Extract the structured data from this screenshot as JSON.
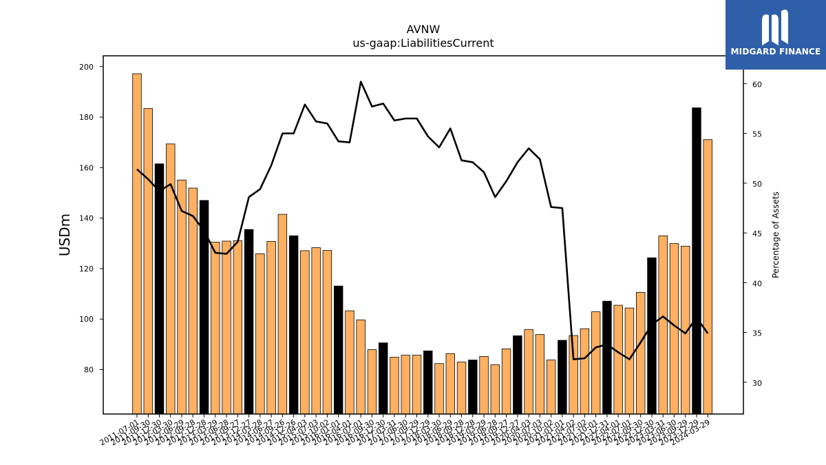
{
  "brand": {
    "name": "MIDGARD FINANCE",
    "bg_color": "#2f5fa8"
  },
  "chart_data": {
    "type": "bar",
    "title": "AVNW",
    "subtitle": "us-gaap:LiabilitiesCurrent",
    "ylabel": "USDm",
    "y2label": "Percentage of Assets",
    "ylim": [
      62.4,
      204.3
    ],
    "y2lim": [
      26.8,
      62.8
    ],
    "yticks": [
      80,
      100,
      120,
      140,
      160,
      180,
      200
    ],
    "y2ticks": [
      30,
      35,
      40,
      45,
      50,
      55,
      60
    ],
    "grid": false,
    "colors": {
      "quarter": "#ffb061",
      "annual": "#000000",
      "line": "#000000"
    },
    "categories": [
      "2011-07-01",
      "2011-09-30",
      "2011-12-30",
      "2012-03-30",
      "2012-06-29",
      "2012-09-28",
      "2012-12-28",
      "2013-03-29",
      "2013-06-28",
      "2013-09-27",
      "2013-12-27",
      "2014-03-28",
      "2014-06-27",
      "2014-09-26",
      "2014-12-26",
      "2015-04-03",
      "2015-07-03",
      "2015-10-02",
      "2016-01-01",
      "2016-04-01",
      "2016-07-01",
      "2016-09-30",
      "2016-12-30",
      "2017-03-31",
      "2017-06-30",
      "2017-09-29",
      "2017-12-29",
      "2018-03-30",
      "2018-06-29",
      "2018-09-28",
      "2018-12-28",
      "2019-03-29",
      "2019-06-28",
      "2019-09-27",
      "2019-12-27",
      "2020-04-03",
      "2020-07-03",
      "2020-10-02",
      "2021-01-01",
      "2021-04-02",
      "2021-07-02",
      "2021-10-01",
      "2021-12-31",
      "2022-04-01",
      "2022-07-01",
      "2022-09-30",
      "2022-12-30",
      "2023-03-31",
      "2023-06-30",
      "2023-09-29",
      "2023-12-29",
      "2024-03-29"
    ],
    "series": [
      {
        "values": [
          197.2,
          183.4,
          161.5,
          169.4,
          155.1,
          151.9,
          147.0,
          130.5,
          130.9,
          131.1,
          135.5,
          125.9,
          130.8,
          141.5,
          133.0,
          127.1,
          128.3,
          127.2,
          113.1,
          103.3,
          99.7,
          87.9,
          90.6,
          84.9,
          85.7,
          85.7,
          87.4,
          82.4,
          86.3,
          83.0,
          83.8,
          85.2,
          81.9,
          88.2,
          93.4,
          95.9,
          93.9,
          83.8,
          91.6,
          93.5,
          96.2,
          102.9,
          107.1,
          105.5,
          104.4,
          110.6,
          124.3,
          133.0,
          129.9,
          128.9,
          183.7,
          171.1
        ],
        "annual": [
          false,
          false,
          true,
          false,
          false,
          false,
          true,
          false,
          false,
          false,
          true,
          false,
          false,
          false,
          true,
          false,
          false,
          false,
          true,
          false,
          false,
          false,
          true,
          false,
          false,
          false,
          true,
          false,
          false,
          false,
          true,
          false,
          false,
          false,
          true,
          false,
          false,
          false,
          true,
          false,
          false,
          false,
          true,
          false,
          false,
          false,
          true,
          false,
          false,
          false,
          true,
          false
        ]
      },
      {
        "axis": "right",
        "values": [
          51.4,
          50.4,
          49.2,
          49.9,
          47.2,
          46.7,
          45.2,
          43.0,
          42.9,
          44.1,
          48.6,
          49.4,
          51.8,
          55.0,
          55.0,
          57.9,
          56.2,
          56.0,
          54.2,
          54.1,
          60.2,
          57.7,
          58.0,
          56.3,
          56.5,
          56.5,
          54.7,
          53.6,
          55.5,
          52.3,
          52.1,
          51.1,
          48.6,
          50.2,
          52.1,
          53.5,
          52.4,
          47.6,
          47.5,
          32.3,
          32.4,
          33.5,
          33.8,
          33.0,
          32.3,
          34.0,
          35.8,
          36.6,
          35.7,
          34.9,
          36.5,
          34.9
        ]
      }
    ]
  }
}
